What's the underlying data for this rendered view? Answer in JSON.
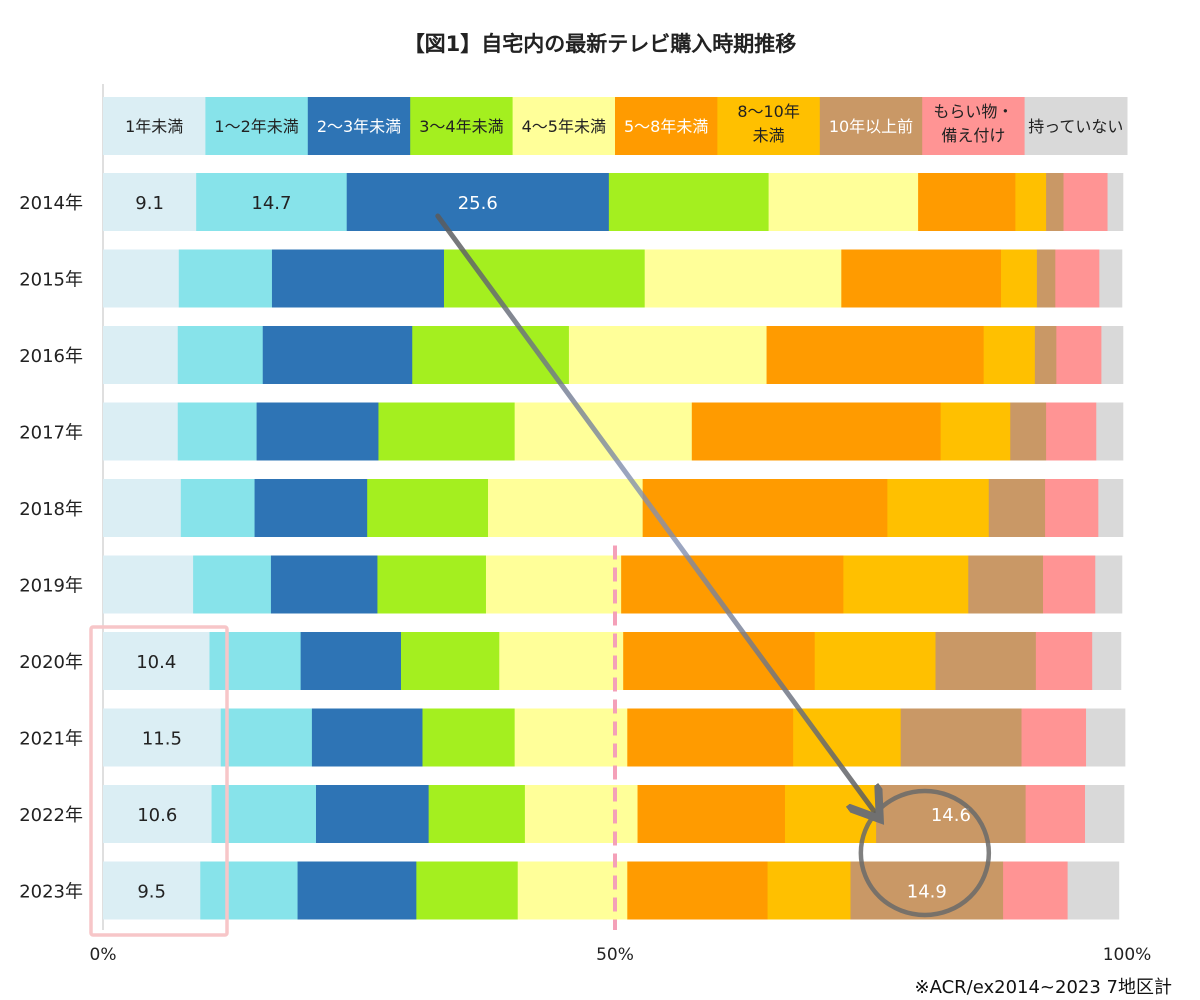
{
  "title": "【図1】自宅内の最新テレビ購入時期推移",
  "source": "※ACR/ex2014~2023  7地区計",
  "colors": {
    "highlight_box": "#f7c6c8",
    "midline": "#f4a0b8",
    "arrow": "#6a6a6a",
    "arrow_head": "#8a8a8a"
  },
  "chart_data": {
    "type": "bar",
    "orientation": "horizontal",
    "stacked": true,
    "unit": "%",
    "xlim": [
      0,
      100
    ],
    "x_ticks": [
      "0%",
      "50%",
      "100%"
    ],
    "grid": false,
    "legend_position": "top",
    "categories": [
      "2014年",
      "2015年",
      "2016年",
      "2017年",
      "2018年",
      "2019年",
      "2020年",
      "2021年",
      "2022年",
      "2023年"
    ],
    "series": [
      {
        "name": "1年未満",
        "color": "#dbeef4",
        "label_color": "#222222",
        "values": [
          9.1,
          7.4,
          7.3,
          7.3,
          7.6,
          8.8,
          10.4,
          11.5,
          10.6,
          9.5
        ]
      },
      {
        "name": "1～2年未満",
        "color": "#87e3ea",
        "label_color": "#222222",
        "values": [
          14.7,
          9.1,
          8.3,
          7.7,
          7.2,
          7.6,
          8.9,
          8.9,
          10.2,
          9.5
        ]
      },
      {
        "name": "2～3年未満",
        "color": "#2e74b5",
        "label_color": "#ffffff",
        "values": [
          25.6,
          16.8,
          14.6,
          11.9,
          11.0,
          10.4,
          9.8,
          10.8,
          11.0,
          11.6
        ]
      },
      {
        "name": "3～4年未満",
        "color": "#a4ef1f",
        "label_color": "#222222",
        "values": [
          15.6,
          19.6,
          15.3,
          13.3,
          11.8,
          10.6,
          9.6,
          9.0,
          9.4,
          9.9
        ]
      },
      {
        "name": "4～5年未満",
        "color": "#ffff99",
        "label_color": "#222222",
        "values": [
          14.6,
          19.2,
          19.3,
          17.3,
          15.1,
          13.2,
          12.1,
          11.0,
          11.0,
          10.7
        ]
      },
      {
        "name": "5～8年未満",
        "color": "#ff9b00",
        "label_color": "#ffffff",
        "values": [
          9.5,
          15.6,
          21.2,
          24.3,
          23.9,
          21.7,
          18.7,
          16.2,
          14.4,
          13.7
        ]
      },
      {
        "name": "8～10年未満",
        "color": "#ffc000",
        "label_color": "#222222",
        "values": [
          3.0,
          3.5,
          5.0,
          6.8,
          9.9,
          12.2,
          11.8,
          10.5,
          8.9,
          8.1
        ]
      },
      {
        "name": "10年以上前",
        "color": "#c99866",
        "label_color": "#ffffff",
        "values": [
          1.7,
          1.8,
          2.1,
          3.5,
          5.5,
          7.3,
          9.8,
          11.8,
          14.6,
          14.9
        ]
      },
      {
        "name": "もらい物・備え付け",
        "color": "#ff9494",
        "label_color": "#222222",
        "values": [
          4.3,
          4.3,
          4.4,
          4.9,
          5.2,
          5.1,
          5.5,
          6.3,
          5.8,
          6.3
        ]
      },
      {
        "name": "持っていない",
        "color": "#d9d9d9",
        "label_color": "#222222",
        "values": [
          1.5,
          2.2,
          2.1,
          2.6,
          2.4,
          2.6,
          2.8,
          3.8,
          3.8,
          5.0
        ]
      }
    ],
    "data_labels": [
      {
        "row": 0,
        "series": 0,
        "text": "9.1"
      },
      {
        "row": 0,
        "series": 1,
        "text": "14.7"
      },
      {
        "row": 0,
        "series": 2,
        "text": "25.6"
      },
      {
        "row": 6,
        "series": 0,
        "text": "10.4"
      },
      {
        "row": 7,
        "series": 0,
        "text": "11.5"
      },
      {
        "row": 8,
        "series": 0,
        "text": "10.6"
      },
      {
        "row": 9,
        "series": 0,
        "text": "9.5"
      },
      {
        "row": 8,
        "series": 7,
        "text": "14.6"
      },
      {
        "row": 9,
        "series": 7,
        "text": "14.9"
      }
    ]
  }
}
